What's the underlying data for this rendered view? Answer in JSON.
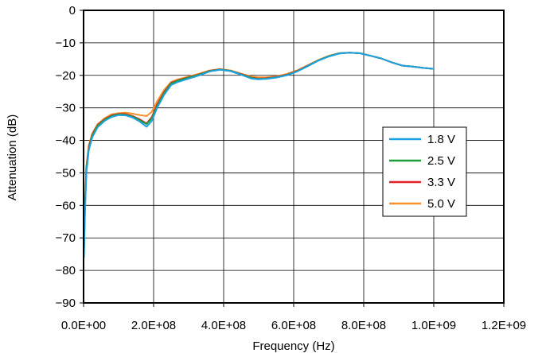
{
  "chart_data": {
    "type": "line",
    "xlabel": "Frequency (Hz)",
    "ylabel": "Attenuation (dB)",
    "xlim": [
      0,
      1200000000
    ],
    "ylim": [
      -90,
      0
    ],
    "x_ticks": [
      {
        "value": 0,
        "label": "0.0E+00"
      },
      {
        "value": 200000000,
        "label": "2.0E+08"
      },
      {
        "value": 400000000,
        "label": "4.0E+08"
      },
      {
        "value": 600000000,
        "label": "6.0E+08"
      },
      {
        "value": 800000000,
        "label": "8.0E+08"
      },
      {
        "value": 1000000000,
        "label": "1.0E+09"
      },
      {
        "value": 1200000000,
        "label": "1.2E+09"
      }
    ],
    "y_ticks": [
      {
        "value": 0,
        "label": "0"
      },
      {
        "value": -10,
        "label": "−10"
      },
      {
        "value": -20,
        "label": "−20"
      },
      {
        "value": -30,
        "label": "−30"
      },
      {
        "value": -40,
        "label": "−40"
      },
      {
        "value": -50,
        "label": "−50"
      },
      {
        "value": -60,
        "label": "−60"
      },
      {
        "value": -70,
        "label": "−70"
      },
      {
        "value": -80,
        "label": "−80"
      },
      {
        "value": -90,
        "label": "−90"
      }
    ],
    "grid": true,
    "legend_position": "right-middle",
    "series": [
      {
        "name": "1.8 V",
        "color": "#1ba1e2",
        "points": [
          [
            1000000,
            -76
          ],
          [
            4000000,
            -62
          ],
          [
            8000000,
            -50
          ],
          [
            15000000,
            -43
          ],
          [
            25000000,
            -39
          ],
          [
            40000000,
            -36
          ],
          [
            60000000,
            -34
          ],
          [
            80000000,
            -32.8
          ],
          [
            100000000,
            -32.2
          ],
          [
            120000000,
            -32.3
          ],
          [
            140000000,
            -33
          ],
          [
            160000000,
            -34.2
          ],
          [
            180000000,
            -35.8
          ],
          [
            195000000,
            -34
          ],
          [
            210000000,
            -30
          ],
          [
            230000000,
            -26
          ],
          [
            250000000,
            -23
          ],
          [
            270000000,
            -22
          ],
          [
            300000000,
            -21
          ],
          [
            330000000,
            -20
          ],
          [
            360000000,
            -18.8
          ],
          [
            390000000,
            -18.3
          ],
          [
            420000000,
            -18.7
          ],
          [
            450000000,
            -19.8
          ],
          [
            480000000,
            -21
          ],
          [
            500000000,
            -21.2
          ],
          [
            520000000,
            -21.1
          ],
          [
            550000000,
            -20.7
          ],
          [
            580000000,
            -20
          ],
          [
            610000000,
            -18.8
          ],
          [
            640000000,
            -17.2
          ],
          [
            670000000,
            -15.5
          ],
          [
            700000000,
            -14.2
          ],
          [
            730000000,
            -13.3
          ],
          [
            760000000,
            -13
          ],
          [
            790000000,
            -13.2
          ],
          [
            820000000,
            -14
          ],
          [
            850000000,
            -14.8
          ],
          [
            880000000,
            -16
          ],
          [
            910000000,
            -17
          ],
          [
            940000000,
            -17.3
          ],
          [
            970000000,
            -17.7
          ],
          [
            1000000000,
            -18
          ]
        ]
      },
      {
        "name": "2.5 V",
        "color": "#1e9e3a",
        "points": [
          [
            1000000,
            -75
          ],
          [
            4000000,
            -61
          ],
          [
            8000000,
            -49
          ],
          [
            15000000,
            -42.5
          ],
          [
            25000000,
            -38.5
          ],
          [
            40000000,
            -35.5
          ],
          [
            60000000,
            -33.7
          ],
          [
            80000000,
            -32.5
          ],
          [
            100000000,
            -32
          ],
          [
            120000000,
            -32.1
          ],
          [
            140000000,
            -32.7
          ],
          [
            160000000,
            -33.8
          ],
          [
            180000000,
            -35
          ],
          [
            195000000,
            -33.2
          ],
          [
            210000000,
            -29.5
          ],
          [
            230000000,
            -25.5
          ],
          [
            250000000,
            -22.5
          ],
          [
            270000000,
            -21.6
          ],
          [
            300000000,
            -20.7
          ],
          [
            330000000,
            -19.8
          ],
          [
            360000000,
            -18.7
          ],
          [
            390000000,
            -18.2
          ],
          [
            420000000,
            -18.6
          ],
          [
            450000000,
            -19.7
          ],
          [
            480000000,
            -20.8
          ],
          [
            500000000,
            -21.1
          ],
          [
            520000000,
            -21
          ],
          [
            550000000,
            -20.6
          ],
          [
            580000000,
            -19.9
          ],
          [
            610000000,
            -18.7
          ],
          [
            640000000,
            -17.1
          ],
          [
            670000000,
            -15.4
          ],
          [
            700000000,
            -14.1
          ],
          [
            730000000,
            -13.2
          ],
          [
            760000000,
            -13
          ],
          [
            790000000,
            -13.2
          ],
          [
            820000000,
            -14
          ],
          [
            850000000,
            -14.8
          ],
          [
            880000000,
            -16
          ],
          [
            910000000,
            -17
          ],
          [
            940000000,
            -17.3
          ],
          [
            970000000,
            -17.7
          ],
          [
            1000000000,
            -18
          ]
        ]
      },
      {
        "name": "3.3 V",
        "color": "#e8202a",
        "points": [
          [
            1000000,
            -74
          ],
          [
            4000000,
            -60
          ],
          [
            8000000,
            -48.5
          ],
          [
            15000000,
            -42
          ],
          [
            25000000,
            -38.2
          ],
          [
            40000000,
            -35.3
          ],
          [
            60000000,
            -33.5
          ],
          [
            80000000,
            -32.3
          ],
          [
            100000000,
            -31.9
          ],
          [
            120000000,
            -31.9
          ],
          [
            140000000,
            -32.5
          ],
          [
            160000000,
            -33.5
          ],
          [
            180000000,
            -34.8
          ],
          [
            195000000,
            -32.8
          ],
          [
            210000000,
            -29
          ],
          [
            230000000,
            -25.2
          ],
          [
            250000000,
            -22.3
          ],
          [
            270000000,
            -21.5
          ],
          [
            300000000,
            -20.6
          ],
          [
            330000000,
            -19.7
          ],
          [
            360000000,
            -18.6
          ],
          [
            390000000,
            -18.1
          ],
          [
            420000000,
            -18.6
          ],
          [
            450000000,
            -19.6
          ],
          [
            480000000,
            -20.7
          ],
          [
            500000000,
            -21
          ],
          [
            520000000,
            -20.9
          ],
          [
            550000000,
            -20.5
          ],
          [
            580000000,
            -19.8
          ],
          [
            610000000,
            -18.6
          ],
          [
            640000000,
            -17
          ],
          [
            670000000,
            -15.4
          ],
          [
            700000000,
            -14.1
          ],
          [
            730000000,
            -13.2
          ],
          [
            760000000,
            -13
          ],
          [
            790000000,
            -13.2
          ],
          [
            820000000,
            -14
          ],
          [
            850000000,
            -14.8
          ],
          [
            880000000,
            -16
          ],
          [
            910000000,
            -17
          ],
          [
            940000000,
            -17.3
          ],
          [
            970000000,
            -17.7
          ],
          [
            1000000000,
            -18
          ]
        ]
      },
      {
        "name": "5.0 V",
        "color": "#f5902a",
        "points": [
          [
            1000000,
            -73
          ],
          [
            4000000,
            -59
          ],
          [
            8000000,
            -48
          ],
          [
            15000000,
            -41.5
          ],
          [
            25000000,
            -37.8
          ],
          [
            40000000,
            -35
          ],
          [
            60000000,
            -33.2
          ],
          [
            80000000,
            -32
          ],
          [
            100000000,
            -31.6
          ],
          [
            120000000,
            -31.5
          ],
          [
            140000000,
            -31.8
          ],
          [
            160000000,
            -32.2
          ],
          [
            180000000,
            -32.5
          ],
          [
            195000000,
            -31.2
          ],
          [
            210000000,
            -28
          ],
          [
            230000000,
            -24.5
          ],
          [
            250000000,
            -22
          ],
          [
            270000000,
            -21.2
          ],
          [
            300000000,
            -20.4
          ],
          [
            330000000,
            -19.5
          ],
          [
            360000000,
            -18.5
          ],
          [
            390000000,
            -18.1
          ],
          [
            420000000,
            -18.5
          ],
          [
            450000000,
            -19.5
          ],
          [
            480000000,
            -20.4
          ],
          [
            500000000,
            -20.6
          ],
          [
            520000000,
            -20.6
          ],
          [
            550000000,
            -20.3
          ],
          [
            580000000,
            -19.6
          ],
          [
            610000000,
            -18.5
          ],
          [
            640000000,
            -16.9
          ],
          [
            670000000,
            -15.3
          ],
          [
            700000000,
            -14
          ],
          [
            730000000,
            -13.2
          ],
          [
            760000000,
            -13
          ],
          [
            790000000,
            -13.2
          ],
          [
            820000000,
            -14
          ],
          [
            850000000,
            -14.8
          ],
          [
            880000000,
            -16
          ],
          [
            910000000,
            -17
          ],
          [
            940000000,
            -17.3
          ],
          [
            970000000,
            -17.7
          ],
          [
            1000000000,
            -18
          ]
        ]
      }
    ]
  }
}
